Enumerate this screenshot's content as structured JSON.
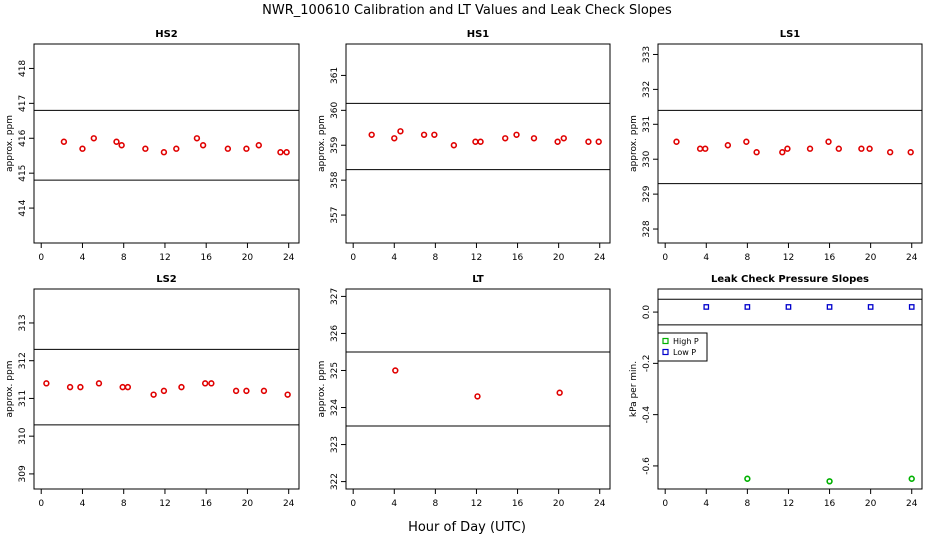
{
  "figure": {
    "title": "NWR_100610  Calibration and LT Values and Leak Check Slopes",
    "xlabel": "Hour of Day (UTC)"
  },
  "chart_data": [
    {
      "type": "scatter",
      "title": "HS2",
      "ylabel": "approx. ppm",
      "xlim": [
        -0.7,
        25
      ],
      "ylim": [
        413.0,
        418.7
      ],
      "xticks": [
        0,
        4,
        8,
        12,
        16,
        20,
        24
      ],
      "yticks": [
        414,
        415,
        416,
        417,
        418
      ],
      "hlines": [
        416.8,
        414.8
      ],
      "point_color": "#e00000",
      "series": [
        {
          "x": [
            2.2,
            4.0,
            5.1,
            7.3,
            7.8,
            10.1,
            11.9,
            13.1,
            15.1,
            15.7,
            18.1,
            19.9,
            21.1,
            23.2,
            23.8
          ],
          "y": [
            415.9,
            415.7,
            416.0,
            415.9,
            415.8,
            415.7,
            415.6,
            415.7,
            416.0,
            415.8,
            415.7,
            415.7,
            415.8,
            415.6,
            415.6
          ]
        }
      ]
    },
    {
      "type": "scatter",
      "title": "HS1",
      "ylabel": "approx. ppm",
      "xlim": [
        -0.7,
        25
      ],
      "ylim": [
        356.2,
        361.9
      ],
      "xticks": [
        0,
        4,
        8,
        12,
        16,
        20,
        24
      ],
      "yticks": [
        357,
        358,
        359,
        360,
        361
      ],
      "hlines": [
        360.2,
        358.3
      ],
      "point_color": "#e00000",
      "series": [
        {
          "x": [
            1.8,
            4.0,
            4.6,
            6.9,
            7.9,
            9.8,
            11.9,
            12.4,
            14.8,
            15.9,
            17.6,
            19.9,
            20.5,
            22.9,
            23.9
          ],
          "y": [
            359.3,
            359.2,
            359.4,
            359.3,
            359.3,
            359.0,
            359.1,
            359.1,
            359.2,
            359.3,
            359.2,
            359.1,
            359.2,
            359.1,
            359.1
          ]
        }
      ]
    },
    {
      "type": "scatter",
      "title": "LS1",
      "ylabel": "approx. ppm",
      "xlim": [
        -0.7,
        25
      ],
      "ylim": [
        327.6,
        333.3
      ],
      "xticks": [
        0,
        4,
        8,
        12,
        16,
        20,
        24
      ],
      "yticks": [
        328,
        329,
        330,
        331,
        332,
        333
      ],
      "hlines": [
        331.4,
        329.3
      ],
      "point_color": "#e00000",
      "series": [
        {
          "x": [
            1.1,
            3.4,
            3.9,
            6.1,
            7.9,
            8.9,
            11.4,
            11.9,
            14.1,
            15.9,
            16.9,
            19.1,
            19.9,
            21.9,
            23.9
          ],
          "y": [
            330.5,
            330.3,
            330.3,
            330.4,
            330.5,
            330.2,
            330.2,
            330.3,
            330.3,
            330.5,
            330.3,
            330.3,
            330.3,
            330.2,
            330.2
          ]
        }
      ]
    },
    {
      "type": "scatter",
      "title": "LS2",
      "ylabel": "approx. ppm",
      "xlim": [
        -0.7,
        25
      ],
      "ylim": [
        308.6,
        313.9
      ],
      "xticks": [
        0,
        4,
        8,
        12,
        16,
        20,
        24
      ],
      "yticks": [
        309,
        310,
        311,
        312,
        313
      ],
      "hlines": [
        312.3,
        310.3
      ],
      "point_color": "#e00000",
      "series": [
        {
          "x": [
            0.5,
            2.8,
            3.8,
            5.6,
            7.9,
            8.4,
            10.9,
            11.9,
            13.6,
            15.9,
            16.5,
            18.9,
            19.9,
            21.6,
            23.9
          ],
          "y": [
            311.4,
            311.3,
            311.3,
            311.4,
            311.3,
            311.3,
            311.1,
            311.2,
            311.3,
            311.4,
            311.4,
            311.2,
            311.2,
            311.2,
            311.1
          ]
        }
      ]
    },
    {
      "type": "scatter",
      "title": "LT",
      "ylabel": "approx. ppm",
      "xlim": [
        -0.7,
        25
      ],
      "ylim": [
        321.8,
        327.2
      ],
      "xticks": [
        0,
        4,
        8,
        12,
        16,
        20,
        24
      ],
      "yticks": [
        322,
        323,
        324,
        325,
        326,
        327
      ],
      "hlines": [
        325.5,
        323.5
      ],
      "point_color": "#e00000",
      "series": [
        {
          "x": [
            4.1,
            12.1,
            20.1
          ],
          "y": [
            325.0,
            324.3,
            324.4
          ]
        }
      ]
    },
    {
      "type": "scatter",
      "title": "Leak Check Pressure Slopes",
      "ylabel": "kPa per min.",
      "xlim": [
        -0.7,
        25
      ],
      "ylim": [
        -0.69,
        0.09
      ],
      "xticks": [
        0,
        4,
        8,
        12,
        16,
        20,
        24
      ],
      "yticks": [
        -0.6,
        -0.4,
        -0.2,
        0.0
      ],
      "ytick_labels": [
        "-0.6",
        "-0.4",
        "-0.2",
        "0.0"
      ],
      "hlines": [
        0.05,
        -0.05
      ],
      "legend": {
        "position": "left",
        "labels": [
          "High P",
          "Low P"
        ],
        "colors": [
          "#00b000",
          "#0000cc"
        ]
      },
      "series": [
        {
          "name": "High P",
          "color": "#00b000",
          "x": [
            8.0,
            16.0,
            24.0
          ],
          "y": [
            -0.65,
            -0.66,
            -0.65
          ]
        },
        {
          "name": "Low P",
          "color": "#0000cc",
          "x": [
            4.0,
            8.0,
            12.0,
            16.0,
            20.0,
            24.0
          ],
          "y": [
            0.02,
            0.02,
            0.02,
            0.02,
            0.02,
            0.02
          ]
        }
      ]
    }
  ]
}
